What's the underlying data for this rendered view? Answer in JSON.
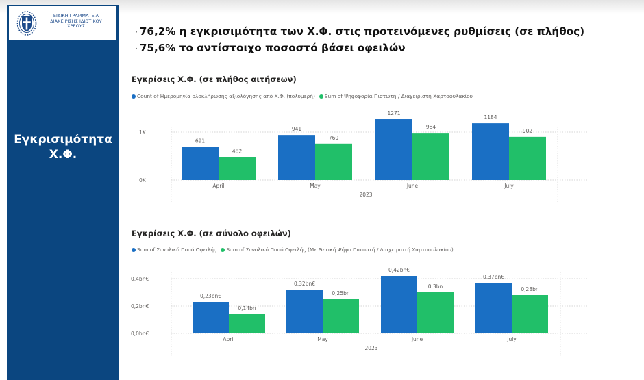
{
  "logo": {
    "lines": [
      "ΕΙΔΙΚΗ ΓΡΑΜΜΑΤΕΙΑ",
      "ΔΙΑΧΕΙΡΙΣΗΣ ΙΔΙΩΤΙΚΟΥ",
      "ΧΡΕΟΥΣ"
    ]
  },
  "sidebar": {
    "title_line1": "Εγκρισιμότητα",
    "title_line2": "Χ.Φ."
  },
  "bullets": [
    "76,2% η εγκρισιμότητα των Χ.Φ. στις προτεινόμενες ρυθμίσεις (σε πλήθος)",
    "75,6% το αντίστοιχο ποσοστό βάσει οφειλών"
  ],
  "colors": {
    "blue": "#1a6fc4",
    "green": "#21bf69",
    "sidebar": "#0b4680"
  },
  "chart_data": [
    {
      "type": "bar",
      "title": "Εγκρίσεις Χ.Φ. (σε πλήθος αιτήσεων)",
      "categories": [
        "April",
        "May",
        "June",
        "July"
      ],
      "xlabel": "2023",
      "yticks": [
        "0K",
        "1K"
      ],
      "ylim": [
        0,
        1300
      ],
      "series": [
        {
          "name": "Count of Ημερομηνία ολοκλήρωσης αξιολόγησης από Χ.Φ. (πολυμερή)",
          "values": [
            691,
            941,
            1271,
            1184
          ],
          "labels": [
            "691",
            "941",
            "1271",
            "1184"
          ]
        },
        {
          "name": "Sum of Ψηφοφορία Πιστωτή / Διαχειριστή Χαρτοφυλακίου",
          "values": [
            482,
            760,
            984,
            902
          ],
          "labels": [
            "482",
            "760",
            "984",
            "902"
          ]
        }
      ]
    },
    {
      "type": "bar",
      "title": "Εγκρίσεις Χ.Φ. (σε σύνολο οφειλών)",
      "categories": [
        "April",
        "May",
        "June",
        "July"
      ],
      "xlabel": "2023",
      "yticks": [
        "0,0bn€",
        "0,2bn€",
        "0,4bn€"
      ],
      "ylim": [
        0,
        0.42
      ],
      "series": [
        {
          "name": "Sum of Συνολικό Ποσό Οφειλής",
          "values": [
            0.23,
            0.32,
            0.42,
            0.37
          ],
          "labels": [
            "0,23bn€",
            "0,32bn€",
            "0,42bn€",
            "0,37bn€"
          ]
        },
        {
          "name": "Sum of Συνολικό Ποσό Οφειλής (Με Θετική Ψήφο Πιστωτή / Διαχειριστή Χαρτοφυλακίου)",
          "values": [
            0.14,
            0.25,
            0.3,
            0.28
          ],
          "labels": [
            "0,14bn",
            "0,25bn",
            "0,3bn",
            "0,28bn"
          ]
        }
      ]
    }
  ]
}
